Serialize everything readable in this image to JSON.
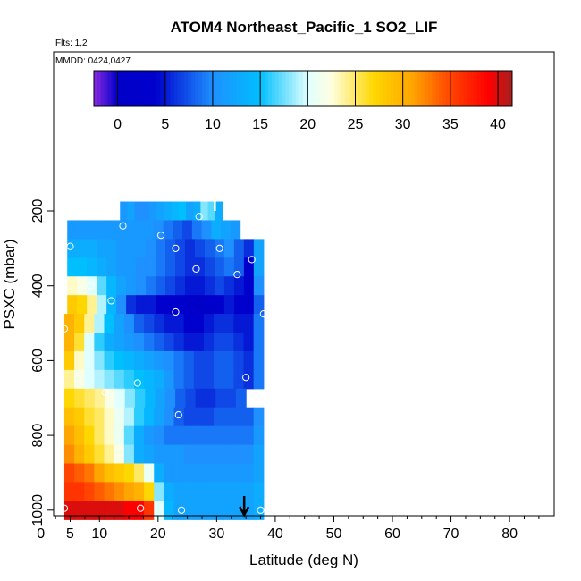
{
  "chart_data": {
    "type": "heatmap",
    "title": "ATOM4 Northeast_Pacific_1 SO2_LIF",
    "flights_label": "Flts: 1,2",
    "dates_label": "MMDD: 0424,0427",
    "xlabel": "Latitude (deg N)",
    "ylabel": "PSXC (mbar)",
    "xlim": [
      0,
      85
    ],
    "ylim": [
      1020,
      0
    ],
    "x_ticks": [
      0,
      5,
      10,
      20,
      30,
      40,
      50,
      60,
      70,
      80
    ],
    "x_tick_labels": [
      "0",
      "5",
      "10",
      "20",
      "30",
      "40",
      "50",
      "60",
      "70",
      "80"
    ],
    "y_ticks": [
      200,
      400,
      600,
      800,
      1000
    ],
    "y_tick_labels": [
      "200",
      "400",
      "600",
      "800",
      "1000"
    ],
    "colorbar": {
      "range": [
        -2.5,
        41.5
      ],
      "ticks": [
        0,
        5,
        10,
        15,
        20,
        25,
        30,
        35,
        40
      ],
      "tick_labels": [
        "0",
        "5",
        "10",
        "15",
        "20",
        "25",
        "30",
        "35",
        "40"
      ],
      "colors": [
        "#8a2be2",
        "#0000c8",
        "#0000cd",
        "#1e90ff",
        "#00bfff",
        "#e0ffff",
        "#ffffe0",
        "#ffd700",
        "#ffa500",
        "#ff4500",
        "#ff0000",
        "#a52020"
      ],
      "stops": [
        -2.5,
        0,
        4,
        10,
        15,
        20,
        22.5,
        27,
        31,
        35,
        39,
        41.5
      ]
    },
    "row_height_mbar": 50,
    "rows": [
      {
        "p": 200,
        "x0": 13.5,
        "x1": 31,
        "v": [
          11,
          12,
          10,
          10,
          11,
          12,
          13,
          14,
          15,
          12,
          13,
          18,
          17,
          13
        ]
      },
      {
        "p": 250,
        "x0": 4.5,
        "x1": 34,
        "v": [
          11,
          11,
          11,
          11,
          11,
          11,
          11,
          11,
          11,
          10,
          9,
          8,
          7,
          9,
          10,
          13,
          12,
          11
        ]
      },
      {
        "p": 300,
        "x0": 4.5,
        "x1": 38,
        "v": [
          13,
          13,
          13,
          12,
          12,
          11,
          11,
          11,
          10,
          9,
          8,
          7,
          6,
          7,
          8,
          9,
          10,
          8,
          6,
          12
        ]
      },
      {
        "p": 350,
        "x0": 4.5,
        "x1": 38,
        "v": [
          15,
          15,
          14,
          13,
          12,
          11,
          11,
          10,
          10,
          9,
          8,
          7,
          6,
          6,
          7,
          8,
          9,
          8,
          3,
          12
        ]
      },
      {
        "p": 400,
        "x0": 4.5,
        "x1": 38,
        "v": [
          23,
          22,
          20,
          17,
          14,
          12,
          11,
          10,
          9,
          8,
          7,
          6,
          5,
          5,
          6,
          7,
          6,
          5,
          4,
          10
        ]
      },
      {
        "p": 450,
        "x0": 4.5,
        "x1": 38,
        "v": [
          28,
          27,
          24,
          19,
          14,
          10,
          6,
          5,
          5,
          4,
          3,
          3,
          0,
          0,
          2,
          4,
          5,
          4,
          4,
          8
        ]
      },
      {
        "p": 500,
        "x0": 4,
        "x1": 38,
        "v": [
          30,
          28,
          24,
          19,
          15,
          12,
          10,
          8,
          7,
          6,
          5,
          5,
          4,
          4,
          5,
          6,
          6,
          5,
          5,
          9
        ]
      },
      {
        "p": 550,
        "x0": 4,
        "x1": 38,
        "v": [
          30,
          26,
          20,
          16,
          13,
          12,
          11,
          10,
          9,
          8,
          7,
          6,
          5,
          5,
          6,
          7,
          7,
          6,
          5,
          9
        ]
      },
      {
        "p": 600,
        "x0": 4,
        "x1": 38,
        "v": [
          28,
          23,
          20,
          18,
          16,
          15,
          14,
          13,
          12,
          11,
          10,
          9,
          8,
          7,
          7,
          8,
          8,
          7,
          6,
          9
        ]
      },
      {
        "p": 650,
        "x0": 4,
        "x1": 38,
        "v": [
          24,
          22,
          20,
          19,
          18,
          17,
          16,
          15,
          14,
          13,
          11,
          9,
          8,
          7,
          7,
          8,
          8,
          7,
          6,
          9
        ]
      },
      {
        "p": 700,
        "x0": 4,
        "x1": 35,
        "v": [
          27,
          26,
          25,
          24,
          22,
          20,
          18,
          16,
          14,
          12,
          10,
          8,
          7,
          6,
          6,
          7,
          7,
          8
        ]
      },
      {
        "p": 750,
        "x0": 4,
        "x1": 38,
        "v": [
          29,
          28,
          26,
          25,
          23,
          21,
          19,
          16,
          14,
          12,
          10,
          8,
          7,
          7,
          7,
          8,
          8,
          8,
          8,
          10
        ]
      },
      {
        "p": 800,
        "x0": 4,
        "x1": 38,
        "v": [
          31,
          29,
          27,
          25,
          23,
          21,
          17,
          13,
          11,
          10,
          9,
          9,
          9,
          9,
          9,
          9,
          9,
          9,
          9,
          11
        ]
      },
      {
        "p": 850,
        "x0": 4,
        "x1": 38,
        "v": [
          32,
          30,
          28,
          26,
          24,
          22,
          18,
          13,
          12,
          11,
          11,
          11,
          10,
          10,
          10,
          10,
          10,
          10,
          10,
          12
        ]
      },
      {
        "p": 900,
        "x0": 4,
        "x1": 38,
        "v": [
          35,
          34,
          33,
          31,
          29,
          28,
          27,
          25,
          21,
          13,
          11,
          11,
          11,
          11,
          11,
          11,
          11,
          11,
          11,
          12
        ]
      },
      {
        "p": 950,
        "x0": 4,
        "x1": 38,
        "v": [
          36,
          36,
          35,
          34,
          33,
          32,
          31,
          30,
          27,
          18,
          13,
          12,
          12,
          12,
          12,
          12,
          12,
          12,
          12,
          13
        ]
      },
      {
        "p": 1000,
        "x0": 4,
        "x1": 38,
        "v": [
          40,
          40,
          40,
          40,
          40,
          40,
          39,
          39,
          36,
          20,
          14,
          12,
          12,
          12,
          12,
          12,
          12,
          12,
          12,
          13
        ]
      }
    ],
    "column_segments": [
      {
        "x": 29.7,
        "p_top": 160,
        "p_bot": 200,
        "v": 22
      }
    ],
    "markers": [
      {
        "x": 27,
        "p": 215
      },
      {
        "x": 14,
        "p": 240
      },
      {
        "x": 20.5,
        "p": 265
      },
      {
        "x": 5,
        "p": 295
      },
      {
        "x": 23,
        "p": 300
      },
      {
        "x": 30.5,
        "p": 300
      },
      {
        "x": 36,
        "p": 330
      },
      {
        "x": 26.5,
        "p": 355
      },
      {
        "x": 33.5,
        "p": 370
      },
      {
        "x": 8.5,
        "p": 400
      },
      {
        "x": 12,
        "p": 440
      },
      {
        "x": 23,
        "p": 470
      },
      {
        "x": 38,
        "p": 475
      },
      {
        "x": 4,
        "p": 515
      },
      {
        "x": 35,
        "p": 645
      },
      {
        "x": 16.5,
        "p": 660
      },
      {
        "x": 11,
        "p": 685
      },
      {
        "x": 23.5,
        "p": 745
      },
      {
        "x": 4,
        "p": 995
      },
      {
        "x": 17,
        "p": 995
      },
      {
        "x": 24,
        "p": 1000
      },
      {
        "x": 37.5,
        "p": 1000
      }
    ],
    "arrow_latitude": 34.7
  }
}
